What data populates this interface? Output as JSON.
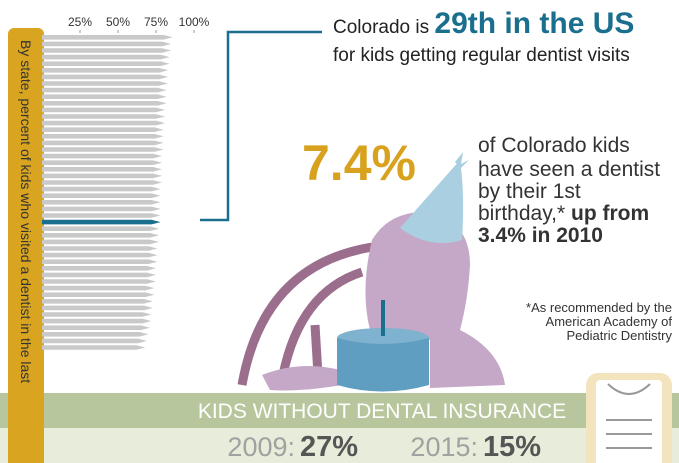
{
  "chart_data": {
    "type": "bar",
    "orientation": "horizontal",
    "axis_label": "By state, percent of kids who visited a dentist in the last",
    "categories": [
      null,
      null,
      null,
      null,
      null,
      null,
      null,
      null,
      null,
      null,
      null,
      null,
      null,
      null,
      null,
      null,
      null,
      null,
      null,
      null,
      null,
      null,
      null,
      null,
      null,
      null,
      null,
      null,
      null,
      null,
      null,
      null,
      null,
      null,
      null,
      null,
      null,
      null,
      null,
      null,
      null,
      null,
      null,
      null,
      null,
      null,
      null,
      null
    ],
    "values": [
      86,
      85,
      85,
      84,
      84,
      83,
      83,
      83,
      82,
      82,
      82,
      81,
      81,
      81,
      80,
      80,
      80,
      80,
      79,
      79,
      79,
      79,
      79,
      78,
      78,
      78,
      78,
      78,
      78,
      77,
      77,
      77,
      76,
      76,
      76,
      75,
      75,
      75,
      74,
      74,
      73,
      73,
      72,
      72,
      71,
      70,
      69,
      68
    ],
    "colors": [
      "#c9c9c9",
      "#c9c9c9",
      "#c9c9c9",
      "#c9c9c9",
      "#c9c9c9",
      "#c9c9c9",
      "#c9c9c9",
      "#c9c9c9",
      "#c9c9c9",
      "#c9c9c9",
      "#c9c9c9",
      "#c9c9c9",
      "#c9c9c9",
      "#c9c9c9",
      "#c9c9c9",
      "#c9c9c9",
      "#c9c9c9",
      "#c9c9c9",
      "#c9c9c9",
      "#c9c9c9",
      "#c9c9c9",
      "#c9c9c9",
      "#c9c9c9",
      "#c9c9c9",
      "#c9c9c9",
      "#c9c9c9",
      "#c9c9c9",
      "#c9c9c9",
      "#1a6e8e",
      "#c9c9c9",
      "#c9c9c9",
      "#c9c9c9",
      "#c9c9c9",
      "#c9c9c9",
      "#c9c9c9",
      "#c9c9c9",
      "#c9c9c9",
      "#c9c9c9",
      "#c9c9c9",
      "#c9c9c9",
      "#c9c9c9",
      "#c9c9c9",
      "#c9c9c9",
      "#c9c9c9",
      "#c9c9c9",
      "#c9c9c9",
      "#c9c9c9",
      "#c9c9c9"
    ],
    "xlim": [
      0,
      100
    ],
    "xticks": [
      {
        "value": 25,
        "label": "25%"
      },
      {
        "value": 50,
        "label": "50%"
      },
      {
        "value": 75,
        "label": "75%"
      },
      {
        "value": 100,
        "label": "100%"
      }
    ]
  },
  "headline": {
    "lead": "Colorado is",
    "rank": "29th in the US",
    "sub": "for kids getting regular dentist visits"
  },
  "stat": {
    "value": "7.4%",
    "lines": [
      "of Colorado kids",
      "have seen a dentist",
      "by their 1st"
    ],
    "last_plain": "birthday,*",
    "bold_1": "up from",
    "bold_2": "3.4% in 2010"
  },
  "footnote": [
    "*As recommended by the",
    "American Academy of",
    "Pediatric Dentistry"
  ],
  "insurance": {
    "title": "KIDS WITHOUT DENTAL INSURANCE",
    "year_1": "2009:",
    "value_1": "27%",
    "year_2": "2015:",
    "value_2": "15%"
  }
}
